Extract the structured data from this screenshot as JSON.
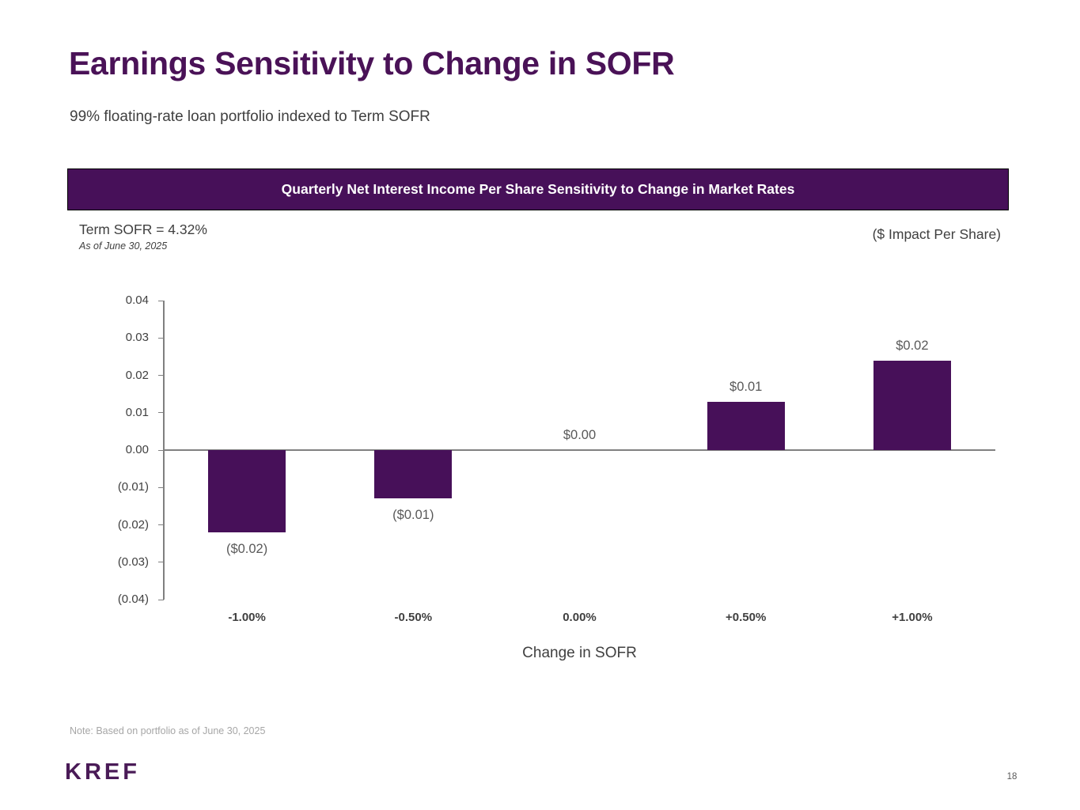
{
  "slide": {
    "title": "Earnings Sensitivity to Change in SOFR",
    "subtitle": "99% floating-rate loan portfolio indexed to Term SOFR",
    "banner": "Quarterly Net Interest Income Per Share Sensitivity to Change in Market Rates",
    "sofr_label": "Term SOFR = 4.32%",
    "sofr_asof": "As of June 30, 2025",
    "impact_label": "($ Impact Per Share)",
    "note": "Note: Based on portfolio as of June 30, 2025",
    "logo": "KREF",
    "page_number": "18"
  },
  "colors": {
    "accent_purple": "#471059",
    "title_purple": "#4a1257",
    "text_dark": "#404040",
    "value_gray": "#595959",
    "note_gray": "#a6a6a6",
    "axis_gray": "#808080",
    "banner_text": "#ffffff",
    "background": "#ffffff"
  },
  "chart_data": {
    "type": "bar",
    "title": "Quarterly Net Interest Income Per Share Sensitivity to Change in Market Rates",
    "xlabel": "Change in SOFR",
    "ylabel": "($ Impact Per Share)",
    "categories": [
      "-1.00%",
      "-0.50%",
      "0.00%",
      "+0.50%",
      "+1.00%"
    ],
    "values": [
      -0.022,
      -0.013,
      0,
      0.013,
      0.024
    ],
    "bar_labels": [
      "($0.02)",
      "($0.01)",
      "$0.00",
      "$0.01",
      "$0.02"
    ],
    "ylim": [
      -0.04,
      0.04
    ],
    "ytick_values": [
      0.04,
      0.03,
      0.02,
      0.01,
      0,
      -0.01,
      -0.02,
      -0.03,
      -0.04
    ],
    "ytick_labels": [
      "0.04",
      "0.03",
      "0.02",
      "0.01",
      "0.00",
      "(0.01)",
      "(0.02)",
      "(0.03)",
      "(0.04)"
    ],
    "grid": false,
    "legend": "none",
    "bar_color": "#471059"
  }
}
